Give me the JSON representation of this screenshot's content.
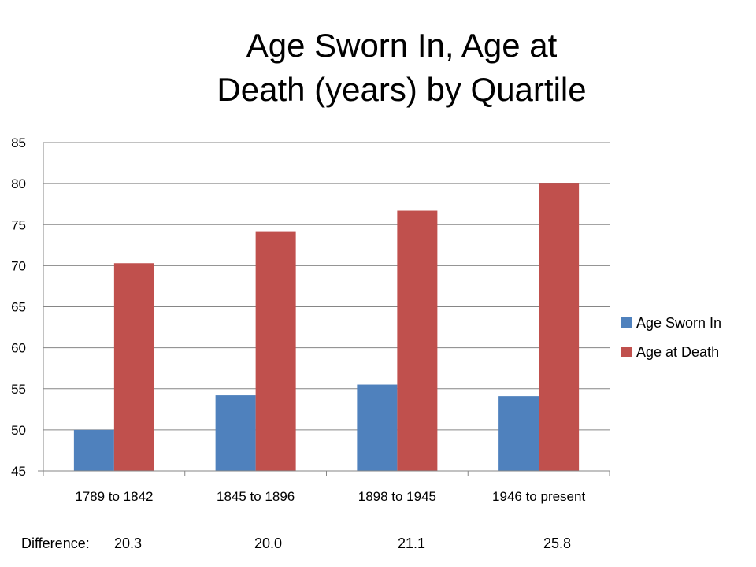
{
  "chart_data": {
    "type": "bar",
    "title_lines": [
      "Age Sworn In, Age at",
      "Death (years) by Quartile"
    ],
    "categories": [
      "1789 to 1842",
      "1845 to 1896",
      "1898 to 1945",
      "1946 to present"
    ],
    "series": [
      {
        "name": "Age Sworn In",
        "color": "#4F81BD",
        "values": [
          50.0,
          54.2,
          55.5,
          54.1
        ]
      },
      {
        "name": "Age at Death",
        "color": "#C0504D",
        "values": [
          70.3,
          74.2,
          76.7,
          80.0
        ]
      }
    ],
    "ylim": [
      45,
      85
    ],
    "yticks": [
      "45",
      "50",
      "55",
      "60",
      "65",
      "70",
      "75",
      "80",
      "85"
    ],
    "grid": true,
    "legend_position": "right",
    "xlabel": "",
    "ylabel": ""
  },
  "footer": {
    "label": "Difference:",
    "differences": [
      "20.3",
      "20.0",
      "21.1",
      "25.8"
    ]
  }
}
